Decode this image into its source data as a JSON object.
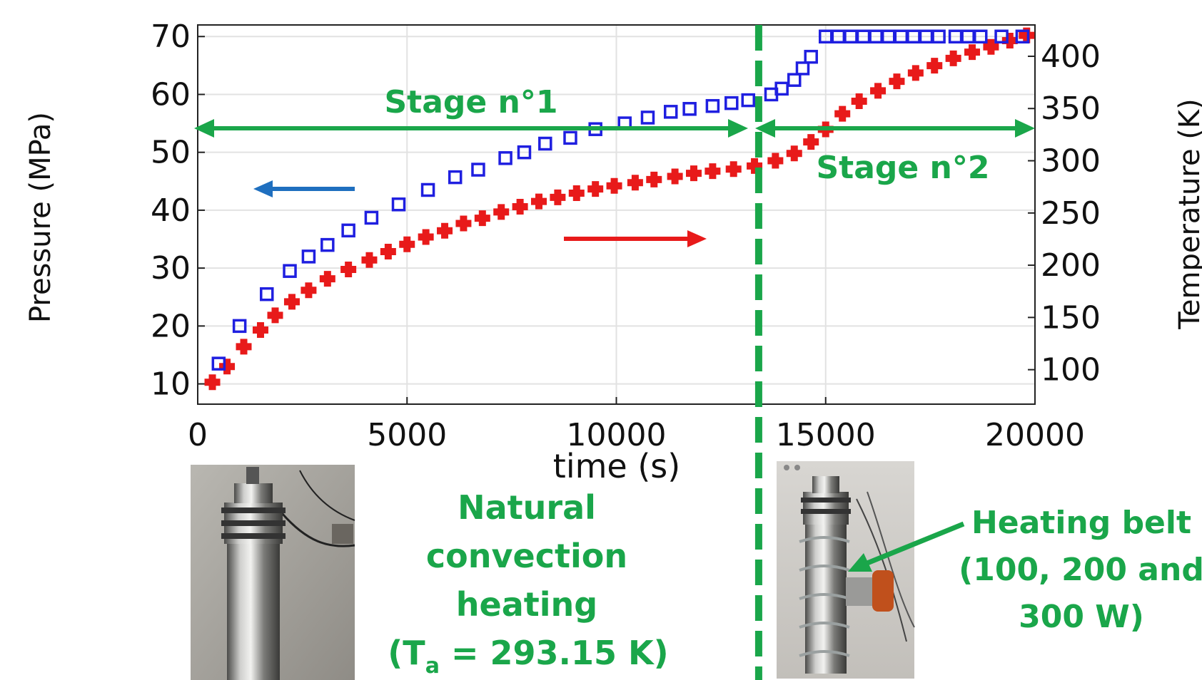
{
  "chart_data": {
    "type": "scatter",
    "xlabel": "time (s)",
    "ylabel_left": "Pressure (MPa)",
    "ylabel_right": "Temperature (K)",
    "xlim": [
      0,
      20000
    ],
    "ylim_left": [
      6.5,
      72
    ],
    "ylim_right": [
      67,
      430
    ],
    "xticks": [
      0,
      5000,
      10000,
      15000,
      20000
    ],
    "yticks_left": [
      10,
      20,
      30,
      40,
      50,
      60,
      70
    ],
    "yticks_right": [
      100,
      150,
      200,
      250,
      300,
      350,
      400
    ],
    "grid": true,
    "colors": {
      "pressure": "#1f1fe0",
      "temperature": "#e81a1a",
      "annotation": "#1aa64a",
      "left_arrow": "#1f6fbf",
      "right_arrow": "#e81a1a"
    },
    "series": [
      {
        "axis": "left",
        "marker": "square-open",
        "color": "#1f1fe0",
        "x": [
          500,
          1000,
          1650,
          2200,
          2650,
          3100,
          3600,
          4150,
          4800,
          5500,
          6150,
          6700,
          7350,
          7800,
          8300,
          8900,
          9500,
          10200,
          10750,
          11300,
          11750,
          12300,
          12750,
          13150,
          13700,
          13950,
          14250,
          14450,
          14650,
          15000,
          15300,
          15600,
          15900,
          16200,
          16500,
          16800,
          17100,
          17400,
          17700,
          18100,
          18400,
          18700,
          19200,
          19700
        ],
        "values": [
          13.5,
          20,
          25.5,
          29.5,
          32,
          34,
          36.5,
          38.7,
          41,
          43.5,
          45.7,
          47,
          49,
          50,
          51.5,
          52.5,
          54,
          55,
          56,
          57,
          57.5,
          58,
          58.5,
          59,
          60,
          61,
          62.5,
          64.5,
          66.5,
          70,
          70,
          70,
          70,
          70,
          70,
          70,
          70,
          70,
          70,
          70,
          70,
          70,
          70,
          70
        ]
      },
      {
        "axis": "right",
        "marker": "plus-thick",
        "color": "#e81a1a",
        "x": [
          350,
          700,
          1100,
          1500,
          1850,
          2250,
          2650,
          3100,
          3600,
          4100,
          4550,
          5000,
          5450,
          5900,
          6350,
          6800,
          7250,
          7700,
          8150,
          8600,
          9050,
          9500,
          9950,
          10450,
          10900,
          11400,
          11850,
          12300,
          12800,
          13300,
          13800,
          14250,
          14650,
          15000,
          15400,
          15800,
          16250,
          16700,
          17150,
          17600,
          18050,
          18500,
          18950,
          19400,
          19800
        ],
        "values": [
          88,
          103,
          122,
          138,
          152,
          165,
          176,
          187,
          196,
          205,
          213,
          220,
          227,
          233,
          240,
          245,
          251,
          256,
          261,
          265,
          269,
          273,
          276,
          279,
          282,
          285,
          288,
          290,
          292,
          295,
          300,
          307,
          318,
          330,
          345,
          357,
          367,
          376,
          384,
          391,
          398,
          404,
          409,
          415,
          420
        ]
      }
    ],
    "annotations": {
      "stage1": "Stage n°1",
      "stage2": "Stage n°2",
      "natural_lines": [
        "Natural",
        "convection",
        "heating"
      ],
      "ta_prefix": "(T",
      "ta_sub": "a",
      "ta_suffix": " = 293.15 K)",
      "belt_lines": [
        "Heating belt",
        "(100, 200 and",
        "300 W)"
      ],
      "stage_boundary_x": 13400
    }
  }
}
